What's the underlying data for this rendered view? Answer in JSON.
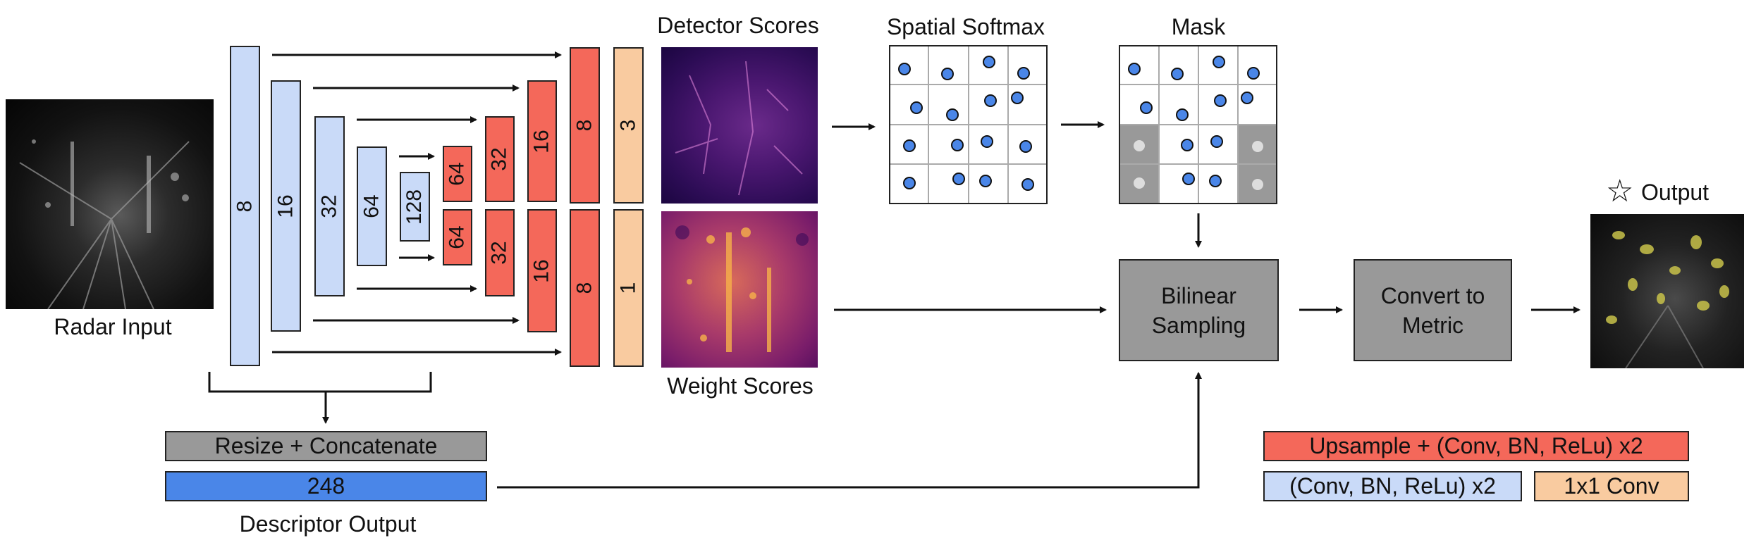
{
  "input": {
    "label": "Radar Input"
  },
  "encoder": {
    "channels": [
      "8",
      "16",
      "32",
      "64",
      "128"
    ]
  },
  "decoder_detector": {
    "channels": [
      "64",
      "32",
      "16",
      "8"
    ],
    "head": "3"
  },
  "decoder_weight": {
    "channels": [
      "64",
      "32",
      "16",
      "8"
    ],
    "head": "1"
  },
  "detector_scores": {
    "label": "Detector Scores"
  },
  "weight_scores": {
    "label": "Weight Scores"
  },
  "spatial_softmax": {
    "label": "Spatial Softmax"
  },
  "mask": {
    "label": "Mask"
  },
  "bilinear": {
    "line1": "Bilinear",
    "line2": "Sampling"
  },
  "convert": {
    "line1": "Convert to",
    "line2": "Metric"
  },
  "output": {
    "label": "Output",
    "star": "☆"
  },
  "descriptor": {
    "resize_label": "Resize + Concatenate",
    "value": "248",
    "label": "Descriptor Output"
  },
  "legend": {
    "upsample": "Upsample + (Conv, BN, ReLu) x2",
    "conv": "(Conv, BN, ReLu) x2",
    "onebyone": "1x1 Conv"
  },
  "colors": {
    "encoder": "#c9daf8",
    "decoder": "#f4685a",
    "head": "#f9cba0",
    "process": "#999999",
    "descriptor": "#4a86e8",
    "keypoint": "#4a86e8"
  }
}
